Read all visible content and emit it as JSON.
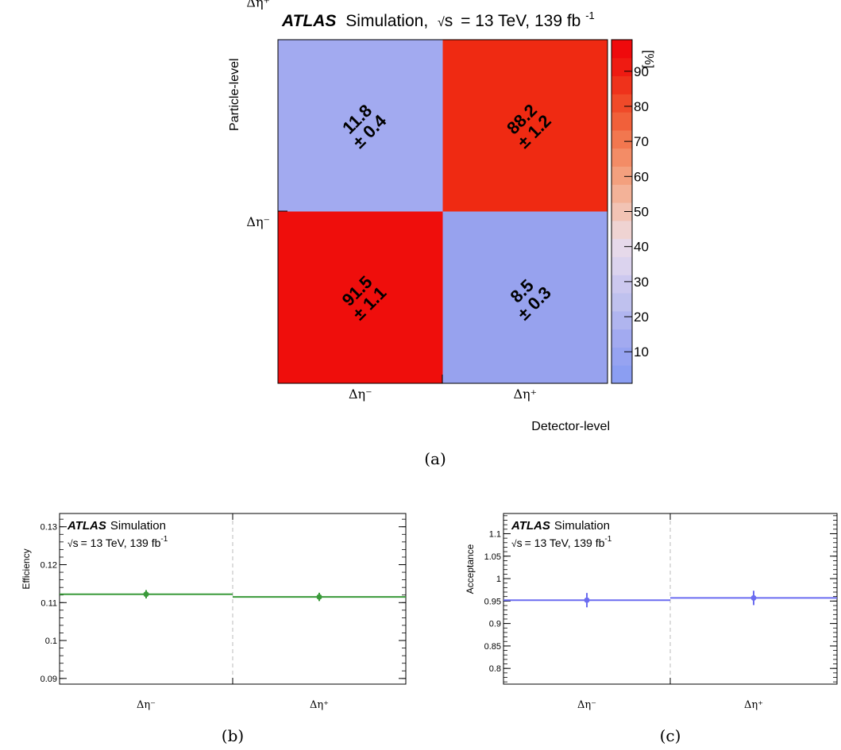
{
  "figure_a": {
    "title_bold": "ATLAS",
    "title_rest": "Simulation,",
    "title_sqrt": "s",
    "title_energy": "= 13 TeV, 139 fb",
    "title_exp": "-1",
    "caption": "(a)",
    "colorbar_unit": "[%]",
    "colorbar_ticks": [
      "10",
      "20",
      "30",
      "40",
      "50",
      "60",
      "70",
      "80",
      "90"
    ],
    "colorbar_range": [
      0,
      100
    ],
    "colorbar_colors": [
      "#8b9ef2",
      "#96a3f1",
      "#a2aaf0",
      "#b0b5ef",
      "#bfc1ee",
      "#ccc8ef",
      "#dbd3ee",
      "#e6d9ea",
      "#efd3d2",
      "#f2c3b4",
      "#f3b298",
      "#f3a07e",
      "#f38c66",
      "#f2774f",
      "#f1603a",
      "#f04a29",
      "#ef321b",
      "#ef1b12",
      "#ef0a0c"
    ]
  },
  "chart_data": [
    {
      "type": "heatmap",
      "xlabel": "Detector-level",
      "ylabel": "Particle-level",
      "x_categories": [
        "Δη⁻",
        "Δη⁺"
      ],
      "y_categories": [
        "Δη⁻",
        "Δη⁺"
      ],
      "cells": [
        {
          "x": "Δη⁻",
          "y": "Δη⁺",
          "value": 11.8,
          "error": 0.4,
          "label_value": "11.8",
          "label_error": "0.4",
          "color": "#a2aaf0"
        },
        {
          "x": "Δη⁺",
          "y": "Δη⁺",
          "value": 88.2,
          "error": 1.2,
          "label_value": "88.2",
          "label_error": "1.2",
          "color": "#ef2a12"
        },
        {
          "x": "Δη⁻",
          "y": "Δη⁻",
          "value": 91.5,
          "error": 1.1,
          "label_value": "91.5",
          "label_error": "1.1",
          "color": "#ef0e0c"
        },
        {
          "x": "Δη⁺",
          "y": "Δη⁻",
          "value": 8.5,
          "error": 0.3,
          "label_value": "8.5",
          "label_error": "0.3",
          "color": "#97a2ee"
        }
      ],
      "zlim": [
        0,
        100
      ]
    },
    {
      "type": "scatter",
      "ylabel": "Efficiency",
      "categories": [
        "Δη⁻",
        "Δη⁺"
      ],
      "values": [
        0.1122,
        0.1115
      ],
      "errors": [
        0.0011,
        0.0011
      ],
      "ylim": [
        0.0885,
        0.1335
      ],
      "yticks": [
        0.09,
        0.1,
        0.11,
        0.12,
        0.13
      ],
      "ytick_labels": [
        "0.09",
        "0.1",
        "0.11",
        "0.12",
        "0.13"
      ],
      "color": "#3a9a3a",
      "legend_bold": "ATLAS",
      "legend_rest": "Simulation",
      "legend_sqrt": "s",
      "legend_energy": "= 13 TeV, 139 fb",
      "legend_exp": "-1",
      "caption": "(b)"
    },
    {
      "type": "scatter",
      "ylabel": "Acceptance",
      "categories": [
        "Δη⁻",
        "Δη⁺"
      ],
      "values": [
        0.952,
        0.957
      ],
      "errors": [
        0.016,
        0.016
      ],
      "ylim": [
        0.765,
        1.145
      ],
      "yticks": [
        0.8,
        0.85,
        0.9,
        0.95,
        1.0,
        1.05,
        1.1
      ],
      "ytick_labels": [
        "0.8",
        "0.85",
        "0.9",
        "0.95",
        "1",
        "1.05",
        "1.1"
      ],
      "color": "#6b6cf0",
      "legend_bold": "ATLAS",
      "legend_rest": "Simulation",
      "legend_sqrt": "s",
      "legend_energy": "= 13 TeV, 139 fb",
      "legend_exp": "-1",
      "caption": "(c)"
    }
  ]
}
